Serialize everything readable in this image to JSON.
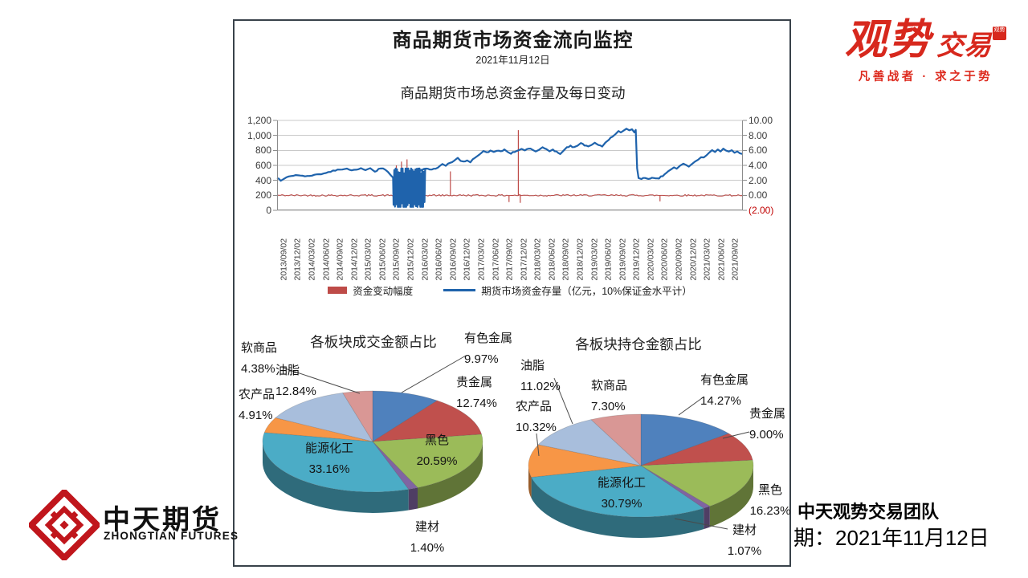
{
  "report": {
    "title": "商品期货市场资金流向监控",
    "date": "2021年11月12日"
  },
  "chart_data": [
    {
      "type": "line",
      "title": "商品期货市场总资金存量及每日变动",
      "left_axis": {
        "ticks": [
          "1,200",
          "1,000",
          "800",
          "600",
          "400",
          "200",
          "0"
        ],
        "ylim": [
          0,
          1200
        ]
      },
      "right_axis": {
        "ticks": [
          "10.00",
          "8.00",
          "6.00",
          "4.00",
          "2.00",
          "0.00",
          "(2.00)"
        ],
        "ylim": [
          -2,
          10
        ]
      },
      "x_labels": [
        "2013/09/02",
        "2013/12/02",
        "2014/03/02",
        "2014/06/02",
        "2014/09/02",
        "2014/12/02",
        "2015/03/02",
        "2015/06/02",
        "2015/09/02",
        "2015/12/02",
        "2016/03/02",
        "2016/06/02",
        "2016/09/02",
        "2016/12/02",
        "2017/03/02",
        "2017/06/02",
        "2017/09/02",
        "2017/12/02",
        "2018/03/02",
        "2018/06/02",
        "2018/09/02",
        "2018/12/02",
        "2019/03/02",
        "2019/06/02",
        "2019/09/02",
        "2019/12/02",
        "2020/03/02",
        "2020/06/02",
        "2020/09/02",
        "2020/12/02",
        "2021/03/02",
        "2021/06/02",
        "2021/09/02"
      ],
      "grid": true,
      "legend_position": "bottom",
      "series": [
        {
          "name": "期货市场资金存量（亿元，10%保证金水平计）",
          "axis": "left",
          "color": "#1f63ac",
          "keypoints": [
            [
              0,
              430
            ],
            [
              0.008,
              398
            ],
            [
              0.02,
              435
            ],
            [
              0.03,
              455
            ],
            [
              0.045,
              470
            ],
            [
              0.06,
              452
            ],
            [
              0.075,
              462
            ],
            [
              0.09,
              478
            ],
            [
              0.105,
              495
            ],
            [
              0.12,
              525
            ],
            [
              0.135,
              545
            ],
            [
              0.15,
              552
            ],
            [
              0.16,
              528
            ],
            [
              0.17,
              548
            ],
            [
              0.18,
              555
            ],
            [
              0.19,
              540
            ],
            [
              0.2,
              558
            ],
            [
              0.21,
              512
            ],
            [
              0.218,
              548
            ],
            [
              0.228,
              558
            ],
            [
              0.238,
              520
            ],
            [
              0.245,
              462
            ],
            [
              0.249,
              430
            ],
            [
              0.32,
              558
            ],
            [
              0.328,
              540
            ],
            [
              0.336,
              548
            ],
            [
              0.345,
              575
            ],
            [
              0.355,
              615
            ],
            [
              0.362,
              598
            ],
            [
              0.372,
              640
            ],
            [
              0.38,
              660
            ],
            [
              0.388,
              700
            ],
            [
              0.394,
              665
            ],
            [
              0.4,
              645
            ],
            [
              0.408,
              662
            ],
            [
              0.415,
              648
            ],
            [
              0.425,
              700
            ],
            [
              0.435,
              755
            ],
            [
              0.443,
              788
            ],
            [
              0.45,
              770
            ],
            [
              0.458,
              792
            ],
            [
              0.465,
              780
            ],
            [
              0.472,
              800
            ],
            [
              0.48,
              788
            ],
            [
              0.488,
              808
            ],
            [
              0.495,
              785
            ],
            [
              0.502,
              760
            ],
            [
              0.51,
              782
            ],
            [
              0.518,
              800
            ],
            [
              0.525,
              818
            ],
            [
              0.532,
              800
            ],
            [
              0.54,
              828
            ],
            [
              0.548,
              805
            ],
            [
              0.555,
              788
            ],
            [
              0.562,
              812
            ],
            [
              0.57,
              838
            ],
            [
              0.578,
              818
            ],
            [
              0.585,
              792
            ],
            [
              0.592,
              812
            ],
            [
              0.6,
              780
            ],
            [
              0.608,
              752
            ],
            [
              0.615,
              800
            ],
            [
              0.622,
              842
            ],
            [
              0.63,
              862
            ],
            [
              0.638,
              838
            ],
            [
              0.645,
              858
            ],
            [
              0.652,
              895
            ],
            [
              0.66,
              872
            ],
            [
              0.668,
              852
            ],
            [
              0.675,
              872
            ],
            [
              0.682,
              902
            ],
            [
              0.69,
              872
            ],
            [
              0.698,
              858
            ],
            [
              0.705,
              902
            ],
            [
              0.712,
              948
            ],
            [
              0.72,
              988
            ],
            [
              0.727,
              1022
            ],
            [
              0.733,
              1055
            ],
            [
              0.738,
              1032
            ],
            [
              0.744,
              1068
            ],
            [
              0.75,
              1088
            ],
            [
              0.756,
              1062
            ],
            [
              0.762,
              1082
            ],
            [
              0.767,
              1048
            ],
            [
              0.77,
              1072
            ],
            [
              0.773,
              560
            ],
            [
              0.776,
              432
            ],
            [
              0.782,
              418
            ],
            [
              0.79,
              438
            ],
            [
              0.797,
              415
            ],
            [
              0.805,
              428
            ],
            [
              0.812,
              422
            ],
            [
              0.82,
              432
            ],
            [
              0.828,
              462
            ],
            [
              0.836,
              502
            ],
            [
              0.844,
              538
            ],
            [
              0.852,
              568
            ],
            [
              0.858,
              552
            ],
            [
              0.865,
              588
            ],
            [
              0.872,
              615
            ],
            [
              0.878,
              598
            ],
            [
              0.884,
              578
            ],
            [
              0.89,
              608
            ],
            [
              0.897,
              645
            ],
            [
              0.904,
              682
            ],
            [
              0.91,
              715
            ],
            [
              0.916,
              698
            ],
            [
              0.922,
              742
            ],
            [
              0.928,
              772
            ],
            [
              0.934,
              798
            ],
            [
              0.94,
              775
            ],
            [
              0.946,
              808
            ],
            [
              0.952,
              788
            ],
            [
              0.958,
              818
            ],
            [
              0.964,
              798
            ],
            [
              0.97,
              778
            ],
            [
              0.976,
              800
            ],
            [
              0.982,
              772
            ],
            [
              0.988,
              792
            ],
            [
              0.994,
              762
            ],
            [
              1,
              748
            ]
          ],
          "volatile_segment": {
            "from": 0.25,
            "to": 0.318,
            "min": 55,
            "max": 545
          }
        },
        {
          "name": "资金变动幅度",
          "axis": "right",
          "color": "#be4b48",
          "baseline": 0,
          "spikes": [
            [
              0.256,
              4.0
            ],
            [
              0.262,
              2.6
            ],
            [
              0.267,
              4.5
            ],
            [
              0.272,
              3.0
            ],
            [
              0.279,
              4.8
            ],
            [
              0.287,
              2.4
            ],
            [
              0.296,
              3.5
            ],
            [
              0.304,
              2.2
            ],
            [
              0.372,
              3.2
            ],
            [
              0.498,
              -0.9
            ],
            [
              0.518,
              8.7
            ],
            [
              0.522,
              -1.0
            ],
            [
              0.822,
              -0.8
            ]
          ]
        }
      ]
    },
    {
      "type": "pie",
      "title": "各板块成交金额占比",
      "slices": [
        {
          "name": "有色金属",
          "pct": "9.97%",
          "value": 9.97,
          "color": "#4f81bd"
        },
        {
          "name": "贵金属",
          "pct": "12.74%",
          "value": 12.74,
          "color": "#c0504d"
        },
        {
          "name": "黑色",
          "pct": "20.59%",
          "value": 20.59,
          "color": "#9bbb59"
        },
        {
          "name": "建材",
          "pct": "1.40%",
          "value": 1.4,
          "color": "#8064a2"
        },
        {
          "name": "能源化工",
          "pct": "33.16%",
          "value": 33.16,
          "color": "#4bacc6"
        },
        {
          "name": "农产品",
          "pct": "4.91%",
          "value": 4.91,
          "color": "#f79646"
        },
        {
          "name": "油脂",
          "pct": "12.84%",
          "value": 12.84,
          "color": "#a8bedc"
        },
        {
          "name": "软商品",
          "pct": "4.38%",
          "value": 4.38,
          "color": "#d99795"
        }
      ]
    },
    {
      "type": "pie",
      "title": "各板块持仓金额占比",
      "slices": [
        {
          "name": "有色金属",
          "pct": "14.27%",
          "value": 14.27,
          "color": "#4f81bd"
        },
        {
          "name": "贵金属",
          "pct": "9.00%",
          "value": 9.0,
          "color": "#c0504d"
        },
        {
          "name": "黑色",
          "pct": "16.23%",
          "value": 16.23,
          "color": "#9bbb59"
        },
        {
          "name": "建材",
          "pct": "1.07%",
          "value": 1.07,
          "color": "#8064a2"
        },
        {
          "name": "能源化工",
          "pct": "30.79%",
          "value": 30.79,
          "color": "#4bacc6"
        },
        {
          "name": "农产品",
          "pct": "10.32%",
          "value": 10.32,
          "color": "#f79646"
        },
        {
          "name": "油脂",
          "pct": "11.02%",
          "value": 11.02,
          "color": "#a8bedc"
        },
        {
          "name": "软商品",
          "pct": "7.30%",
          "value": 7.3,
          "color": "#d99795"
        }
      ]
    }
  ],
  "logos": {
    "guanshi": {
      "main": "观势",
      "secondary": "交易",
      "seal": "观势",
      "tagline": "凡善战者 · 求之于势",
      "color": "#d7281d"
    },
    "zhongtian": {
      "cn": "中天期货",
      "en": "ZHONGTIAN FUTURES",
      "color": "#c0161c"
    }
  },
  "footer": {
    "team": "中天观势交易团队",
    "date_line": "期：2021年11月12日"
  }
}
